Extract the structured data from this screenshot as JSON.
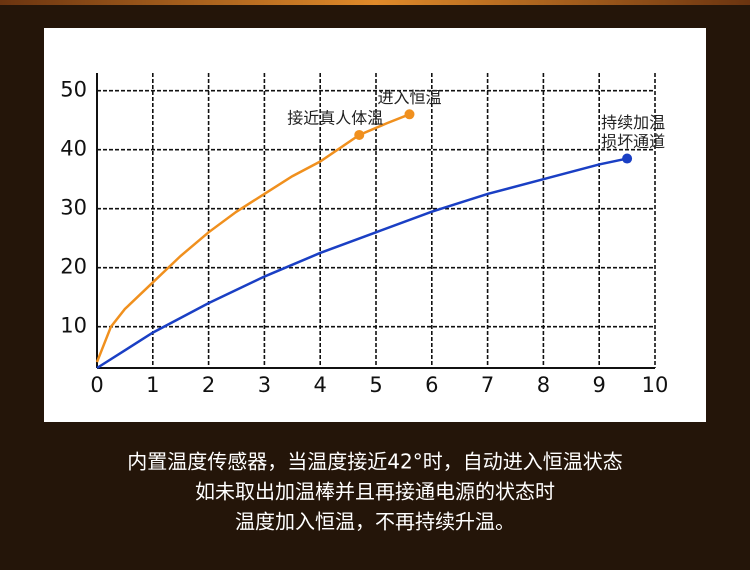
{
  "chart_data": {
    "type": "line",
    "series": [
      {
        "color": "#f0901e",
        "x": [
          0,
          0.25,
          0.5,
          1,
          1.5,
          2,
          2.5,
          3,
          3.5,
          4,
          4.7,
          5.2,
          5.6
        ],
        "values": [
          4,
          10,
          13,
          17.5,
          22,
          26,
          29.5,
          32.5,
          35.5,
          38,
          42.5,
          44.5,
          46
        ]
      },
      {
        "color": "#1a3fc4",
        "x": [
          0,
          1,
          2,
          3,
          4,
          5,
          6,
          7,
          8,
          9,
          9.5
        ],
        "values": [
          3,
          9,
          14,
          18.5,
          22.5,
          26,
          29.5,
          32.5,
          35,
          37.5,
          38.5
        ]
      }
    ],
    "annotations": [
      {
        "lines": [
          "接近真人体温"
        ],
        "x": 4.7,
        "y": 42.5,
        "color": "#f0901e"
      },
      {
        "lines": [
          "进入恒温"
        ],
        "x": 5.6,
        "y": 46,
        "color": "#f0901e"
      },
      {
        "lines": [
          "持续加温",
          "损坏通道"
        ],
        "x": 9.5,
        "y": 38.5,
        "color": "#1a3fc4"
      }
    ],
    "xlim": [
      0,
      10
    ],
    "xticks": [
      0,
      1,
      2,
      3,
      4,
      5,
      6,
      7,
      8,
      9,
      10
    ],
    "ylim": [
      3,
      53
    ],
    "yticks": [
      10,
      20,
      30,
      40,
      50
    ],
    "grid": true,
    "caption": [
      "内置温度传感器，当温度接近42°时，自动进入恒温状态",
      "如未取出加温棒并且再接通电源的状态时",
      "温度加入恒温，不再持续升温。"
    ]
  }
}
